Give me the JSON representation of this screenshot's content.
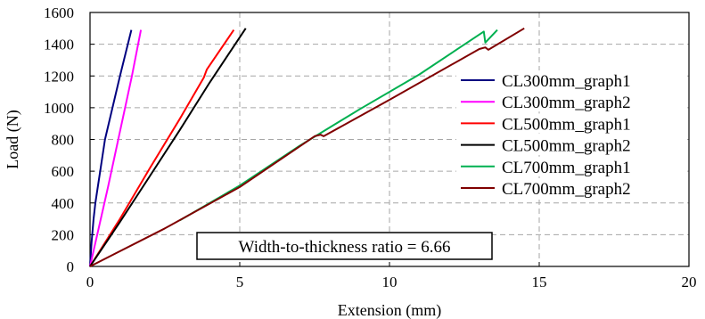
{
  "chart_data": {
    "type": "line",
    "title": "",
    "xlabel": "Extension (mm)",
    "ylabel": "Load (N)",
    "xlim": [
      0,
      20
    ],
    "ylim": [
      0,
      1600
    ],
    "xticks": [
      0,
      5,
      10,
      15,
      20
    ],
    "yticks": [
      0,
      200,
      400,
      600,
      800,
      1000,
      1200,
      1400,
      1600
    ],
    "grid": true,
    "grid_style": "dashed",
    "legend_position": "right",
    "annotation": "Width-to-thickness ratio = 6.66",
    "series": [
      {
        "name": "CL300mm_graph1",
        "color": "#000080",
        "points": [
          [
            0,
            0
          ],
          [
            0.05,
            150
          ],
          [
            0.12,
            300
          ],
          [
            0.18,
            400
          ],
          [
            0.5,
            800
          ],
          [
            1.0,
            1200
          ],
          [
            1.38,
            1490
          ]
        ]
      },
      {
        "name": "CL300mm_graph2",
        "color": "#ff00ff",
        "points": [
          [
            0,
            0
          ],
          [
            0.3,
            250
          ],
          [
            0.6,
            500
          ],
          [
            1.0,
            850
          ],
          [
            1.4,
            1200
          ],
          [
            1.7,
            1490
          ]
        ]
      },
      {
        "name": "CL500mm_graph1",
        "color": "#ff0000",
        "points": [
          [
            0,
            0
          ],
          [
            1.0,
            300
          ],
          [
            2.0,
            620
          ],
          [
            3.0,
            930
          ],
          [
            3.8,
            1190
          ],
          [
            3.9,
            1240
          ],
          [
            4.8,
            1490
          ]
        ]
      },
      {
        "name": "CL500mm_graph2",
        "color": "#000000",
        "points": [
          [
            0,
            0
          ],
          [
            1.0,
            280
          ],
          [
            2.0,
            570
          ],
          [
            3.0,
            860
          ],
          [
            4.0,
            1160
          ],
          [
            5.2,
            1500
          ]
        ]
      },
      {
        "name": "CL700mm_graph1",
        "color": "#00b050",
        "points": [
          [
            3.0,
            290
          ],
          [
            5.0,
            510
          ],
          [
            7.0,
            760
          ],
          [
            9.0,
            990
          ],
          [
            11.0,
            1210
          ],
          [
            13.15,
            1480
          ],
          [
            13.2,
            1410
          ],
          [
            13.6,
            1490
          ]
        ]
      },
      {
        "name": "CL700mm_graph2",
        "color": "#800000",
        "points": [
          [
            0,
            0
          ],
          [
            2.5,
            240
          ],
          [
            5.0,
            500
          ],
          [
            7.5,
            820
          ],
          [
            7.7,
            830
          ],
          [
            7.8,
            820
          ],
          [
            10.0,
            1050
          ],
          [
            13.0,
            1370
          ],
          [
            13.2,
            1380
          ],
          [
            13.3,
            1365
          ],
          [
            14.5,
            1500
          ]
        ]
      }
    ]
  }
}
